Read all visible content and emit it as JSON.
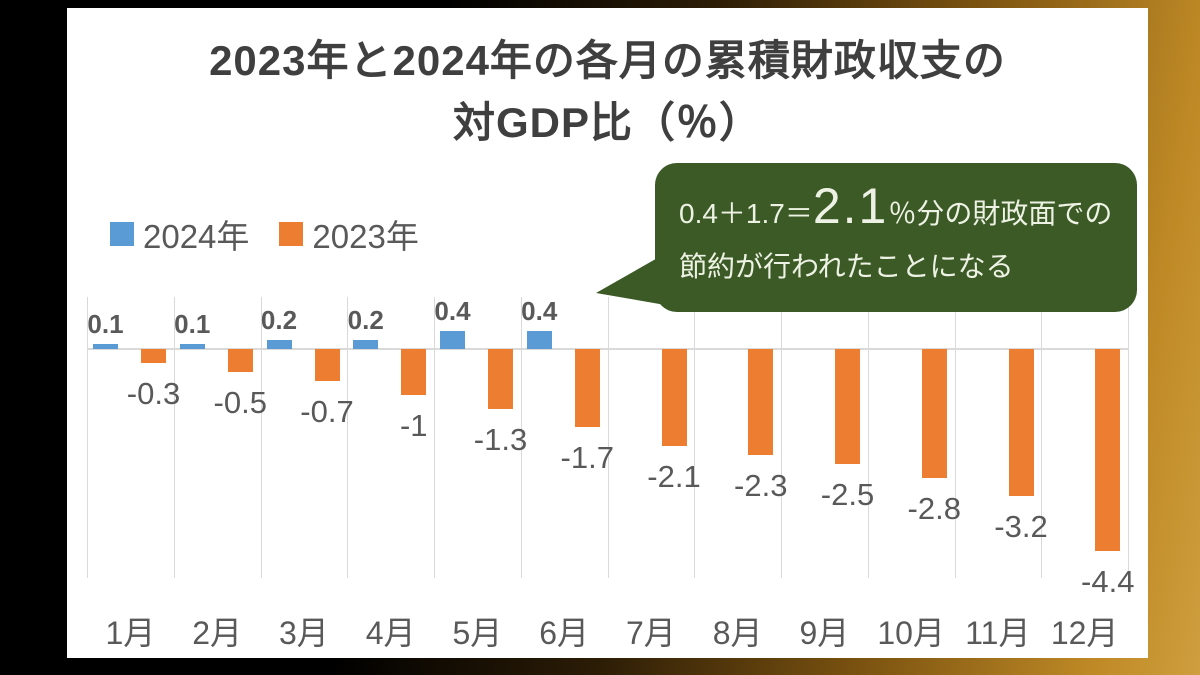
{
  "title": {
    "line1": "2023年と2024年の各月の累積財政収支の",
    "line2": "対GDP比（％）"
  },
  "legend": [
    {
      "label": "2024年",
      "color": "#5b9bd5"
    },
    {
      "label": "2023年",
      "color": "#ed7d31"
    }
  ],
  "callout": {
    "prefix": "0.4＋1.7＝",
    "big": "2.1",
    "suffix": "％分の財政面での",
    "line2": "節約が行われたことになる",
    "bg_color": "#3c5a26",
    "text_color": "#edf2e4"
  },
  "colors": {
    "series_2024": "#5b9bd5",
    "series_2023": "#ed7d31",
    "gridline": "#d9d9d9",
    "value_label": "#595959",
    "title_text": "#3f3f3f",
    "frame_gold": "#bf8a26",
    "frame_black": "#000000",
    "card_bg": "#ffffff"
  },
  "chart_data": {
    "type": "bar",
    "title": "2023年と2024年の各月の累積財政収支の対GDP比（％）",
    "categories": [
      "1月",
      "2月",
      "3月",
      "4月",
      "5月",
      "6月",
      "7月",
      "8月",
      "9月",
      "10月",
      "11月",
      "12月"
    ],
    "series": [
      {
        "name": "2024年",
        "color": "#5b9bd5",
        "values": [
          0.1,
          0.1,
          0.2,
          0.2,
          0.4,
          0.4,
          null,
          null,
          null,
          null,
          null,
          null
        ],
        "labels": [
          "0.1",
          "0.1",
          "0.2",
          "0.2",
          "0.4",
          "0.4",
          "",
          "",
          "",
          "",
          "",
          ""
        ]
      },
      {
        "name": "2023年",
        "color": "#ed7d31",
        "values": [
          -0.3,
          -0.5,
          -0.7,
          -1,
          -1.3,
          -1.7,
          -2.1,
          -2.3,
          -2.5,
          -2.8,
          -3.2,
          -4.4
        ],
        "labels": [
          "-0.3",
          "-0.5",
          "-0.7",
          "-1",
          "-1.3",
          "-1.7",
          "-2.1",
          "-2.3",
          "-2.5",
          "-2.8",
          "-3.2",
          "-4.4"
        ]
      }
    ],
    "xlabel": "",
    "ylabel": "",
    "ylim": [
      -4.8,
      0.6
    ],
    "data_labels": "outside-end",
    "gridlines": "vertical-category-boundaries",
    "legend_position": "top-left",
    "y_axis_ticks_shown": false
  }
}
